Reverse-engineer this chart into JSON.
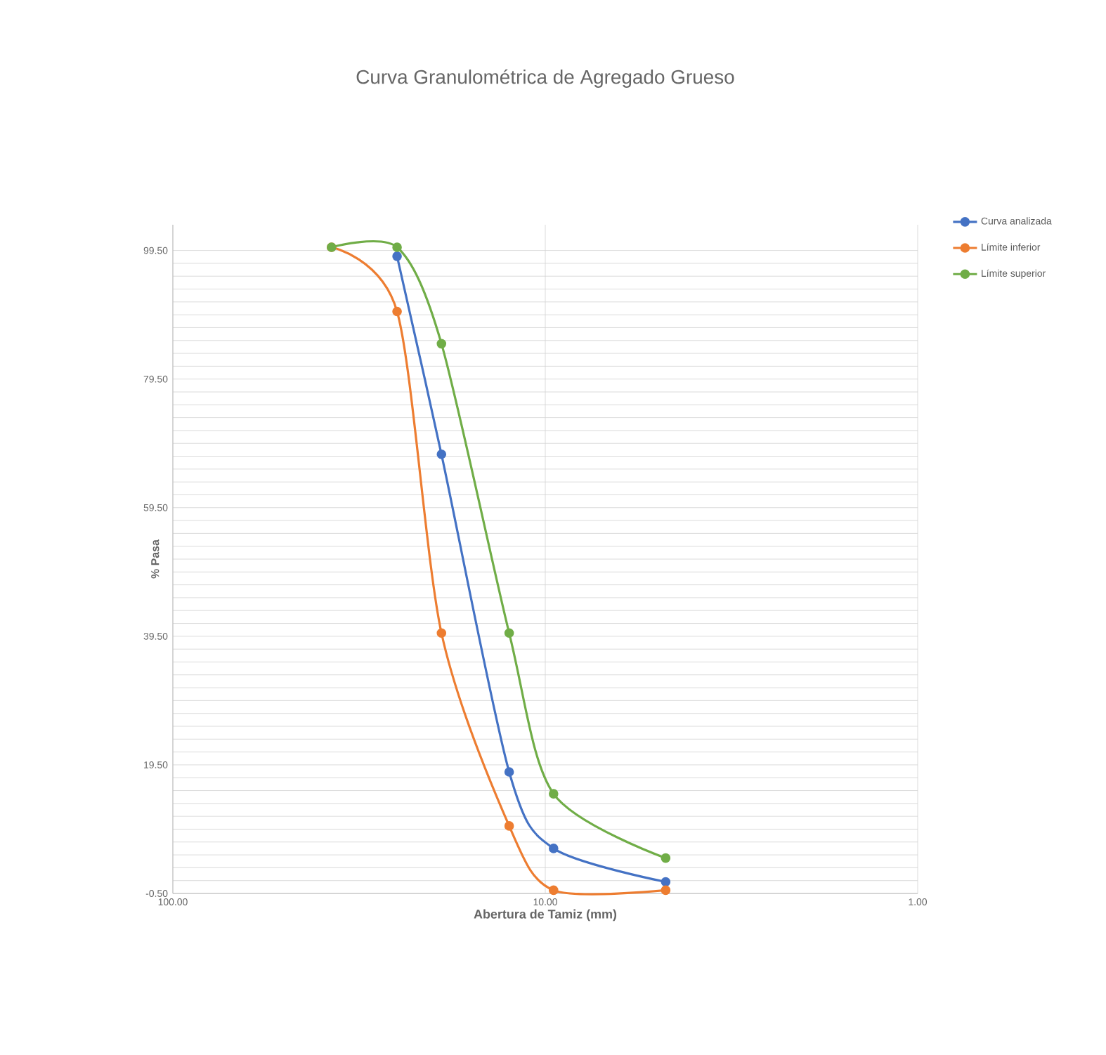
{
  "chart_data": {
    "type": "line",
    "title": "Curva Granulométrica de Agregado Grueso",
    "xlabel": "Abertura de Tamiz (mm)",
    "ylabel": "% Pasa",
    "x": [
      37.5,
      25,
      19,
      12.5,
      9.5,
      4.75
    ],
    "series": [
      {
        "name": "Curva analizada",
        "color": "#4472c4",
        "values": [
          null,
          98.6,
          67.8,
          18.4,
          6.5,
          1.3
        ]
      },
      {
        "name": "Límite inferior",
        "color": "#ed7d31",
        "values": [
          100,
          90,
          40,
          10,
          0,
          0
        ]
      },
      {
        "name": "Límite superior",
        "color": "#70ad47",
        "values": [
          100,
          100,
          85,
          40,
          15,
          5
        ]
      }
    ],
    "log": "x",
    "xlim": [
      100,
      1
    ],
    "ylim": [
      -0.5,
      103.5
    ],
    "xticks": [
      {
        "value": 100,
        "label": "100.00"
      },
      {
        "value": 10,
        "label": "10.00"
      },
      {
        "value": 1,
        "label": "1.00"
      }
    ],
    "yticks": [
      {
        "value": -0.5,
        "label": "-0.50"
      },
      {
        "value": 19.5,
        "label": "19.50"
      },
      {
        "value": 39.5,
        "label": "39.50"
      },
      {
        "value": 59.5,
        "label": "59.50"
      },
      {
        "value": 79.5,
        "label": "79.50"
      },
      {
        "value": 99.5,
        "label": "99.50"
      }
    ],
    "grid": true,
    "legend": "top right",
    "marker": "circle",
    "line_style": "solid"
  }
}
